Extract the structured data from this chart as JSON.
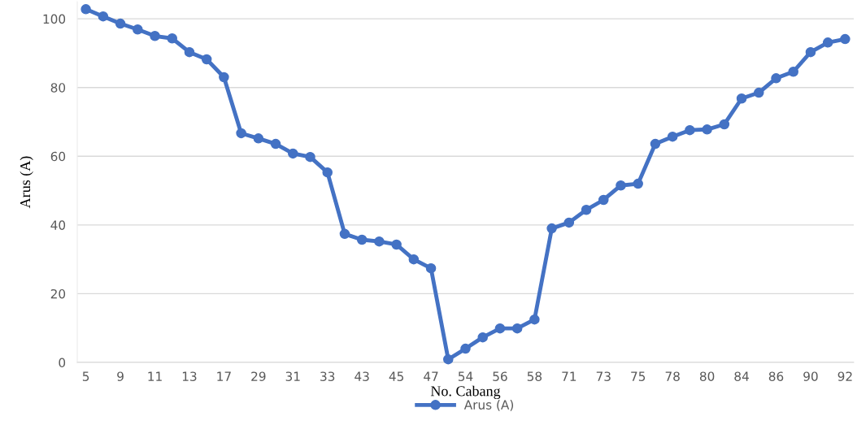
{
  "chart_data": {
    "type": "line",
    "xlabel": "No. Cabang",
    "ylabel": "Arus (A)",
    "categories": [
      "5",
      null,
      "9",
      null,
      "11",
      null,
      "13",
      null,
      "17",
      null,
      "29",
      null,
      "31",
      null,
      "33",
      null,
      "43",
      null,
      "45",
      null,
      "47",
      null,
      "54",
      null,
      "56",
      null,
      "58",
      null,
      "71",
      null,
      "73",
      null,
      "75",
      null,
      "78",
      null,
      "80",
      null,
      "84",
      null,
      "86",
      null,
      "90",
      null,
      "92"
    ],
    "series": [
      {
        "name": "Arus (A)",
        "color": "#4472c4",
        "values": [
          102.8,
          100.7,
          98.6,
          96.9,
          95.0,
          94.3,
          90.3,
          88.2,
          83.0,
          66.7,
          65.2,
          63.6,
          60.8,
          59.8,
          55.3,
          37.4,
          35.7,
          35.2,
          34.3,
          30.0,
          27.4,
          0.9,
          4.0,
          7.3,
          9.9,
          9.9,
          12.5,
          39.0,
          40.7,
          44.4,
          47.3,
          51.5,
          52.0,
          63.6,
          65.7,
          67.6,
          67.8,
          69.3,
          76.8,
          78.5,
          82.7,
          84.6,
          90.3,
          93.1,
          94.1
        ]
      }
    ],
    "ylim": [
      0,
      105
    ],
    "yticks": [
      0,
      20,
      40,
      60,
      80,
      100
    ],
    "grid": "y",
    "legend": "bottom",
    "marker": "circle",
    "line_style": "solid"
  }
}
